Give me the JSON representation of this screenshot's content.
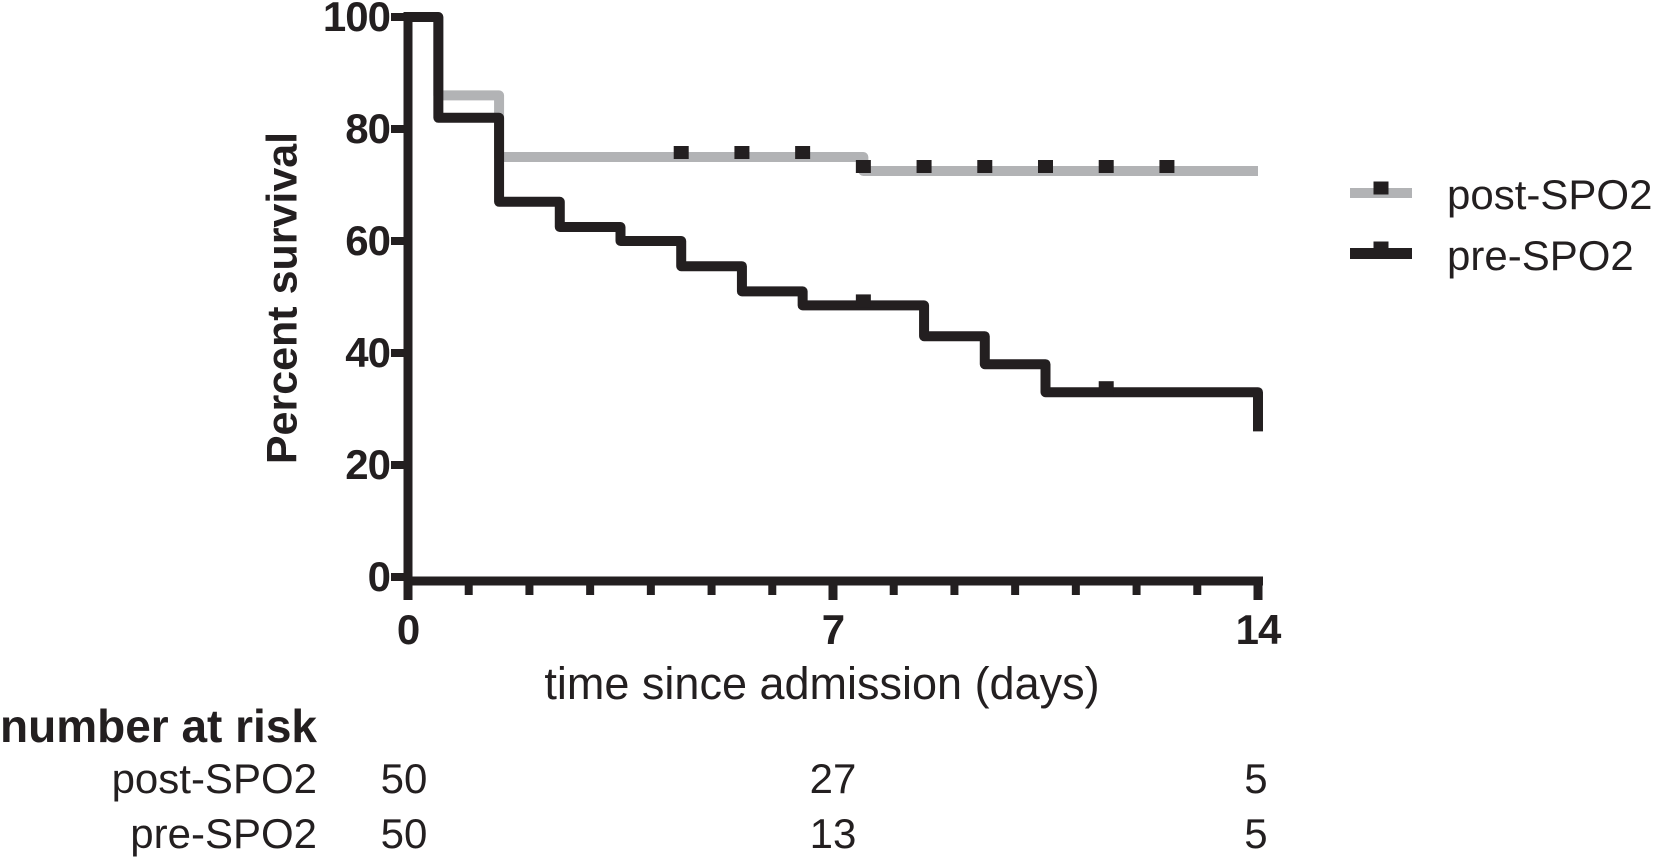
{
  "colors": {
    "ink": "#231f20",
    "gray_series": "#b2b3b5",
    "background": "#ffffff"
  },
  "chart_data": {
    "type": "line",
    "subtype": "kaplan-meier-step-survival",
    "title": "",
    "xlabel": "time since admission (days)",
    "ylabel": "Percent survival",
    "xlim": [
      0,
      14
    ],
    "ylim": [
      0,
      100
    ],
    "xticks_major": [
      0,
      7,
      14
    ],
    "xtick_labels": [
      "0",
      "7",
      "14"
    ],
    "xticks_minor": [
      1,
      2,
      3,
      4,
      5,
      6,
      8,
      9,
      10,
      11,
      12,
      13
    ],
    "yticks": [
      0,
      20,
      40,
      60,
      80,
      100
    ],
    "ytick_labels": [
      "0",
      "20",
      "40",
      "60",
      "80",
      "100"
    ],
    "grid": "off",
    "legend": {
      "position": "right",
      "entries": [
        {
          "name": "post-SPO2",
          "color": "#b2b3b5"
        },
        {
          "name": "pre-SPO2",
          "color": "#231f20"
        }
      ]
    },
    "series": [
      {
        "name": "post-SPO2",
        "color": "#b2b3b5",
        "start": [
          0,
          100
        ],
        "steps": [
          [
            0.5,
            86
          ],
          [
            1.5,
            75
          ],
          [
            7.5,
            72.5
          ]
        ],
        "end_day": 14,
        "end_value": 72.5,
        "censor_marks": [
          [
            4.5,
            75
          ],
          [
            5.5,
            75
          ],
          [
            6.5,
            75
          ],
          [
            7.5,
            72.5
          ],
          [
            8.5,
            72.5
          ],
          [
            9.5,
            72.5
          ],
          [
            10.5,
            72.5
          ],
          [
            11.5,
            72.5
          ],
          [
            12.5,
            72.5
          ]
        ]
      },
      {
        "name": "pre-SPO2",
        "color": "#231f20",
        "start": [
          0,
          100
        ],
        "steps": [
          [
            0.5,
            82
          ],
          [
            1.5,
            67
          ],
          [
            2.5,
            62.5
          ],
          [
            3.5,
            60
          ],
          [
            4.5,
            55.5
          ],
          [
            5.5,
            51
          ],
          [
            6.5,
            48.5
          ],
          [
            8.5,
            43
          ],
          [
            9.5,
            38
          ],
          [
            10.5,
            33
          ],
          [
            14,
            26
          ]
        ],
        "end_day": 14,
        "end_value": 26,
        "censor_marks": [
          [
            7.5,
            48.5
          ],
          [
            11.5,
            33
          ]
        ]
      }
    ],
    "risk_table": {
      "header": "number at risk",
      "time_points": [
        0,
        7,
        14
      ],
      "rows": [
        {
          "label": "post-SPO2",
          "values": [
            "50",
            "27",
            "5"
          ]
        },
        {
          "label": "pre-SPO2",
          "values": [
            "50",
            "13",
            "5"
          ]
        }
      ]
    }
  }
}
